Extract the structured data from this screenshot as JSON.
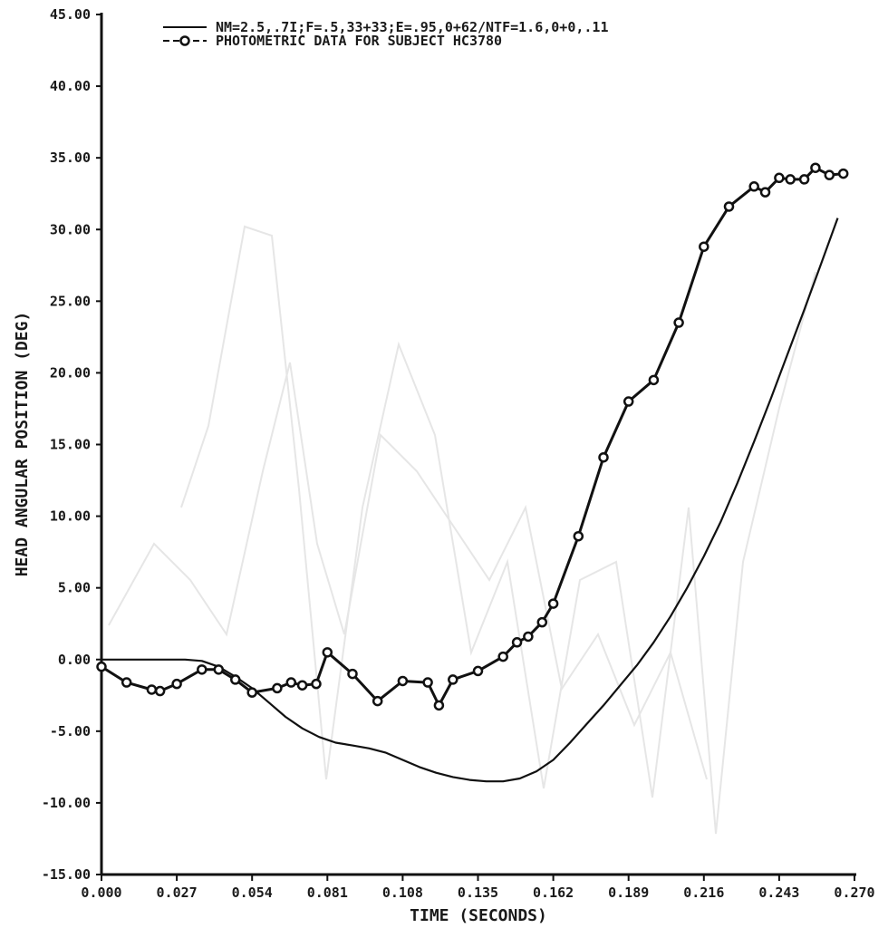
{
  "chart_data": {
    "type": "line",
    "xlabel": "TIME (SECONDS)",
    "ylabel": "HEAD ANGULAR POSITION (DEG)",
    "xlim": [
      0.0,
      0.27
    ],
    "ylim": [
      -15.0,
      45.0
    ],
    "x_ticks": [
      0.0,
      0.027,
      0.054,
      0.081,
      0.108,
      0.135,
      0.162,
      0.189,
      0.216,
      0.243,
      0.27
    ],
    "x_tick_labels": [
      "0.000",
      "0.027",
      "0.054",
      "0.081",
      "0.108",
      "0.135",
      "0.162",
      "0.189",
      "0.216",
      "0.243",
      "0.270"
    ],
    "y_ticks": [
      -15,
      -10,
      -5,
      0,
      5,
      10,
      15,
      20,
      25,
      30,
      35,
      40,
      45
    ],
    "y_tick_labels": [
      "-15.00",
      "-10.00",
      "-5.00",
      "0.00",
      "5.00",
      "10.00",
      "15.00",
      "20.00",
      "25.00",
      "30.00",
      "35.00",
      "40.00",
      "45.00"
    ],
    "grid": false,
    "legend_position": "top",
    "series": [
      {
        "name": "NM=2.5,.7I;F=.5,33+33;E=.95,0+62/NTF=1.6,0+0,.11",
        "color": "#111111",
        "marker": "none",
        "x": [
          0.0,
          0.01,
          0.02,
          0.03,
          0.036,
          0.042,
          0.048,
          0.054,
          0.06,
          0.066,
          0.072,
          0.078,
          0.084,
          0.09,
          0.096,
          0.102,
          0.108,
          0.114,
          0.12,
          0.126,
          0.132,
          0.138,
          0.144,
          0.15,
          0.156,
          0.162,
          0.168,
          0.174,
          0.18,
          0.186,
          0.192,
          0.198,
          0.204,
          0.21,
          0.216,
          0.222,
          0.228,
          0.234,
          0.24,
          0.246,
          0.252,
          0.258,
          0.264
        ],
        "y": [
          0.0,
          0.0,
          0.0,
          0.0,
          -0.1,
          -0.5,
          -1.2,
          -2.0,
          -3.0,
          -4.0,
          -4.8,
          -5.4,
          -5.8,
          -6.0,
          -6.2,
          -6.5,
          -7.0,
          -7.5,
          -7.9,
          -8.2,
          -8.4,
          -8.5,
          -8.5,
          -8.3,
          -7.8,
          -7.0,
          -5.8,
          -4.5,
          -3.2,
          -1.8,
          -0.4,
          1.2,
          3.0,
          5.0,
          7.2,
          9.6,
          12.3,
          15.2,
          18.2,
          21.3,
          24.4,
          27.6,
          30.8
        ]
      },
      {
        "name": "PHOTOMETRIC DATA FOR SUBJECT HC3780",
        "color": "#111111",
        "marker": "circle",
        "x": [
          0.0,
          0.009,
          0.018,
          0.021,
          0.027,
          0.036,
          0.042,
          0.048,
          0.054,
          0.063,
          0.068,
          0.072,
          0.077,
          0.081,
          0.09,
          0.099,
          0.108,
          0.117,
          0.121,
          0.126,
          0.135,
          0.144,
          0.149,
          0.153,
          0.158,
          0.162,
          0.171,
          0.18,
          0.189,
          0.198,
          0.207,
          0.216,
          0.225,
          0.234,
          0.238,
          0.243,
          0.247,
          0.252,
          0.256,
          0.261,
          0.266
        ],
        "y": [
          -0.5,
          -1.6,
          -2.1,
          -2.2,
          -1.7,
          -0.7,
          -0.7,
          -1.4,
          -2.3,
          -2.0,
          -1.6,
          -1.8,
          -1.7,
          0.5,
          -1.0,
          -2.9,
          -1.5,
          -1.6,
          -3.2,
          -1.4,
          -0.8,
          0.2,
          1.2,
          1.6,
          2.6,
          3.9,
          8.6,
          14.1,
          18.0,
          19.5,
          23.5,
          28.8,
          31.6,
          33.0,
          32.6,
          33.6,
          33.5,
          33.5,
          34.3,
          33.8,
          33.9
        ]
      }
    ]
  }
}
